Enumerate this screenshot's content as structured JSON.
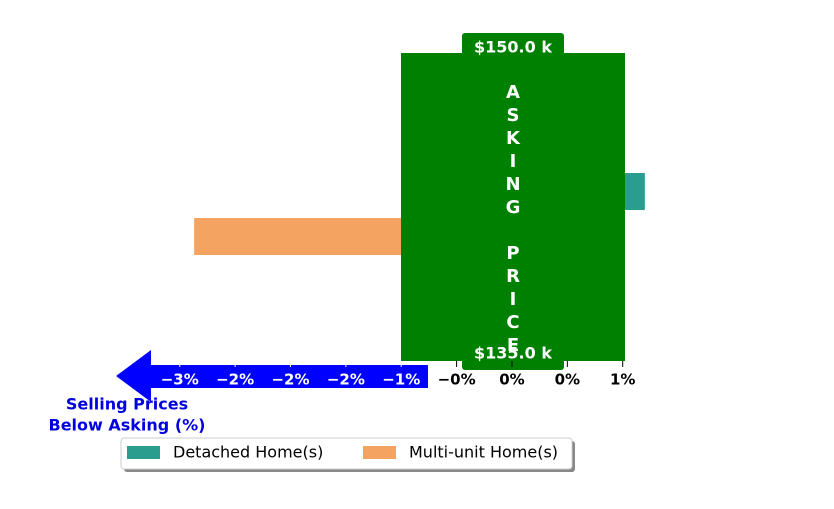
{
  "chart_data": {
    "type": "bar",
    "orientation": "horizontal",
    "series": [
      {
        "name": "Detached Home(s)",
        "color": "#2a9d8f",
        "values": [
          1.2
        ]
      },
      {
        "name": "Multi-unit Home(s)",
        "color": "#f4a460",
        "values": [
          -2.87
        ]
      }
    ],
    "xlim": [
      -3.6,
      1.4
    ],
    "xticks": [
      {
        "value": -3,
        "label": "−3%"
      },
      {
        "value": -2.5,
        "label": "−2%"
      },
      {
        "value": -2,
        "label": "−2%"
      },
      {
        "value": -1.5,
        "label": "−2%"
      },
      {
        "value": -1,
        "label": "−1%"
      },
      {
        "value": -0.5,
        "label": "−0%"
      },
      {
        "value": 0,
        "label": "0%"
      },
      {
        "value": 0.5,
        "label": "0%"
      },
      {
        "value": 1,
        "label": "1%"
      }
    ],
    "asking_label": "ASKING PRICE",
    "price_high": "$150.0 k",
    "price_low": "$135.0 k",
    "arrow_label": [
      "Selling Prices",
      "Below Asking (%)"
    ],
    "legend": "bottom"
  }
}
